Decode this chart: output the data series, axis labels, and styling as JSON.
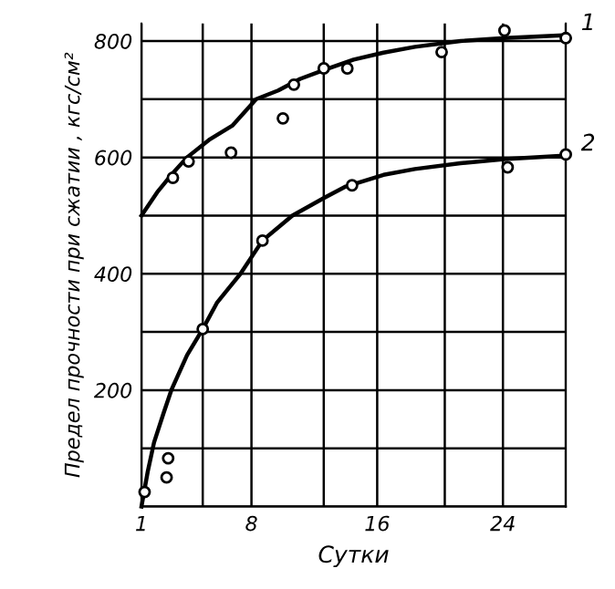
{
  "chart_data": {
    "type": "line",
    "xlabel": "Сутки",
    "ylabel": "Предел прочности при сжатии , кгс/см²",
    "xlim": [
      1,
      28
    ],
    "xticks": [
      1,
      {
        "value": 4.9,
        "label": null
      },
      8,
      {
        "value": 12.6,
        "label": null
      },
      16,
      {
        "value": 20.3,
        "label": null
      },
      24,
      {
        "value": 28,
        "label": null
      }
    ],
    "ylim": [
      0,
      830
    ],
    "yticks": [
      {
        "value": 0,
        "label": null
      },
      {
        "value": 100,
        "label": null
      },
      200,
      {
        "value": 300,
        "label": null
      },
      400,
      {
        "value": 500,
        "label": null
      },
      600,
      {
        "value": 700,
        "label": null
      },
      800
    ],
    "grid": true,
    "marker": "none",
    "line_style": "solid",
    "series": [
      {
        "name": "1",
        "color": "#000000",
        "x": [
          1,
          2,
          2.9,
          3.9,
          5.3,
          6.8,
          8.3,
          9.7,
          11.1,
          12.6,
          14.5,
          16.4,
          18.4,
          21.3,
          24.1,
          28
        ],
        "values": [
          500,
          540,
          570,
          600,
          630,
          655,
          700,
          715,
          735,
          750,
          768,
          780,
          790,
          800,
          805,
          810
        ]
      },
      {
        "name": "2",
        "color": "#000000",
        "x": [
          1,
          1.4,
          1.8,
          2.4,
          2.9,
          3.9,
          4.9,
          5.8,
          7.3,
          8.7,
          10.6,
          12.6,
          14,
          16.4,
          18.4,
          21.3,
          24.1,
          28
        ],
        "values": [
          0,
          60,
          110,
          160,
          200,
          260,
          305,
          350,
          400,
          457,
          500,
          530,
          550,
          570,
          580,
          590,
          597,
          603
        ]
      },
      {
        "type": "scatter",
        "color": "#000000",
        "marker": "circle",
        "x": [
          3,
          4,
          6.7,
          10,
          10.7,
          12.6,
          14.1,
          20.1,
          24.1,
          28
        ],
        "values": [
          565,
          593,
          608,
          667,
          725,
          753,
          753,
          781,
          818,
          805
        ]
      },
      {
        "type": "scatter",
        "color": "#000000",
        "marker": "circle",
        "x": [
          1.2,
          2.7,
          2.6,
          4.9,
          8.7,
          14.4,
          24.3,
          28
        ],
        "values": [
          25,
          83,
          50,
          305,
          457,
          552,
          583,
          605
        ]
      }
    ]
  }
}
